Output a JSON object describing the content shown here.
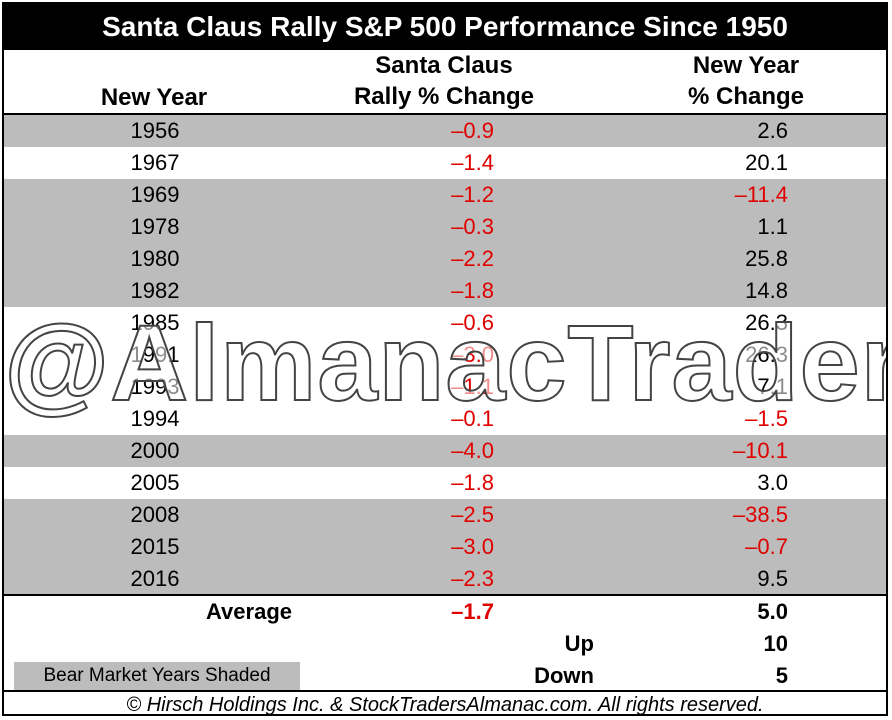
{
  "title": "Santa Claus Rally S&P 500 Performance Since 1950",
  "headers": {
    "col1": "New Year",
    "col2": [
      "Santa Claus",
      "Rally % Change"
    ],
    "col3": [
      "New Year",
      "% Change"
    ]
  },
  "watermark": "@AlmanacTrader",
  "legend": "Bear Market Years Shaded",
  "footer": "© Hirsch Holdings Inc. & StockTradersAlmanac.com. All rights reserved.",
  "colors": {
    "negative": "#e00000",
    "shade": "#bcbcbc",
    "title_bg": "#000000"
  },
  "summary": {
    "average_label": "Average",
    "average_santa": "–1.7",
    "average_new_year": "5.0",
    "up_label": "Up",
    "up_value": "10",
    "down_label": "Down",
    "down_value": "5"
  },
  "chart_data": {
    "type": "table",
    "title": "Santa Claus Rally S&P 500 Performance Since 1950",
    "columns": [
      "New Year",
      "Santa Claus Rally % Change",
      "New Year % Change"
    ],
    "rows": [
      {
        "year": "1956",
        "santa": "–0.9",
        "new_year": "2.6",
        "bear": true
      },
      {
        "year": "1967",
        "santa": "–1.4",
        "new_year": "20.1",
        "bear": false
      },
      {
        "year": "1969",
        "santa": "–1.2",
        "new_year": "–11.4",
        "bear": true
      },
      {
        "year": "1978",
        "santa": "–0.3",
        "new_year": "1.1",
        "bear": true
      },
      {
        "year": "1980",
        "santa": "–2.2",
        "new_year": "25.8",
        "bear": true
      },
      {
        "year": "1982",
        "santa": "–1.8",
        "new_year": "14.8",
        "bear": true
      },
      {
        "year": "1985",
        "santa": "–0.6",
        "new_year": "26.3",
        "bear": false
      },
      {
        "year": "1991",
        "santa": "–3.0",
        "new_year": "26.3",
        "bear": false
      },
      {
        "year": "1993",
        "santa": "–1.1",
        "new_year": "7.1",
        "bear": false
      },
      {
        "year": "1994",
        "santa": "–0.1",
        "new_year": "–1.5",
        "bear": false
      },
      {
        "year": "2000",
        "santa": "–4.0",
        "new_year": "–10.1",
        "bear": true
      },
      {
        "year": "2005",
        "santa": "–1.8",
        "new_year": "3.0",
        "bear": false
      },
      {
        "year": "2008",
        "santa": "–2.5",
        "new_year": "–38.5",
        "bear": true
      },
      {
        "year": "2015",
        "santa": "–3.0",
        "new_year": "–0.7",
        "bear": true
      },
      {
        "year": "2016",
        "santa": "–2.3",
        "new_year": "9.5",
        "bear": true
      }
    ]
  }
}
